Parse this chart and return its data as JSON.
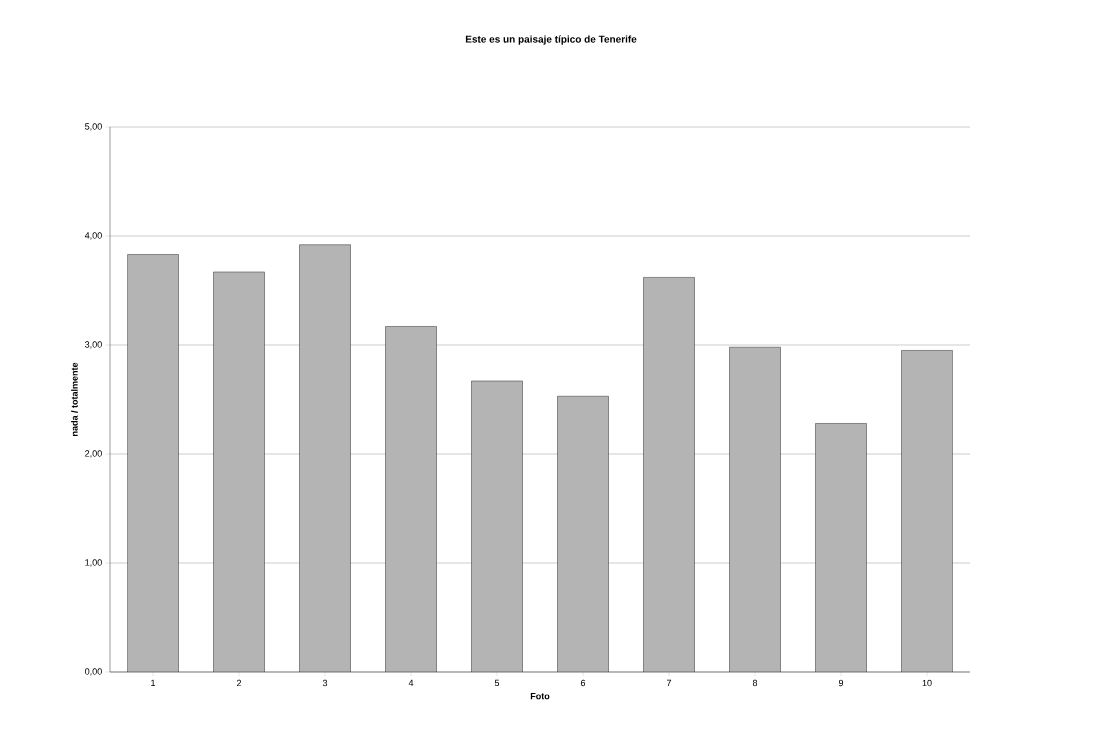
{
  "chart_data": {
    "type": "bar",
    "title": "Este es un paisaje típico de Tenerife",
    "xlabel": "Foto",
    "ylabel": "nada / totalmente",
    "categories": [
      "1",
      "2",
      "3",
      "4",
      "5",
      "6",
      "7",
      "8",
      "9",
      "10"
    ],
    "values": [
      3.83,
      3.67,
      3.92,
      3.17,
      2.67,
      2.53,
      3.62,
      2.98,
      2.28,
      2.95
    ],
    "color": "#b4b4b4",
    "ylim": [
      0,
      5
    ],
    "yticks": [
      {
        "value": 0,
        "label": "0,00"
      },
      {
        "value": 1,
        "label": "1,00"
      },
      {
        "value": 2,
        "label": "2,00"
      },
      {
        "value": 3,
        "label": "3,00"
      },
      {
        "value": 4,
        "label": "4,00"
      },
      {
        "value": 5,
        "label": "5,00"
      }
    ],
    "grid": "y"
  }
}
